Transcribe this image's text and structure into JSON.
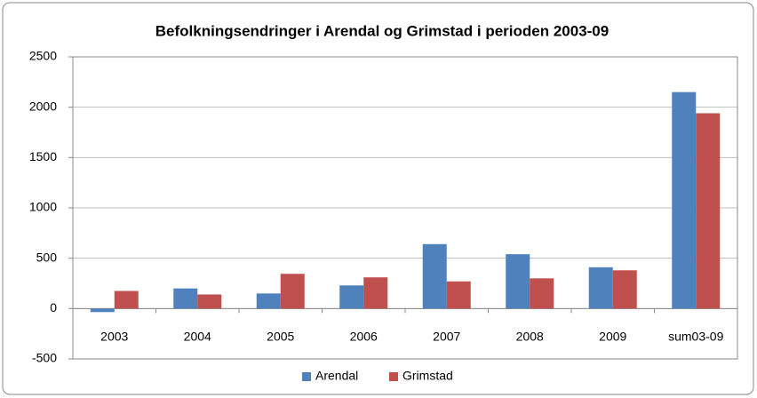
{
  "chart_data": {
    "type": "bar",
    "title": "Befolkningsendringer i Arendal og Grimstad i perioden 2003-09",
    "categories": [
      "2003",
      "2004",
      "2005",
      "2006",
      "2007",
      "2008",
      "2009",
      "sum03-09"
    ],
    "series": [
      {
        "name": "Arendal",
        "color": "#4f81bd",
        "values": [
          -35,
          200,
          150,
          230,
          640,
          540,
          410,
          2150
        ]
      },
      {
        "name": "Grimstad",
        "color": "#c0504d",
        "values": [
          175,
          140,
          345,
          310,
          270,
          300,
          380,
          1940
        ]
      }
    ],
    "ylim": [
      -500,
      2500
    ],
    "yticks": [
      -500,
      0,
      500,
      1000,
      1500,
      2000,
      2500
    ],
    "grid": true,
    "legend": "bottom"
  }
}
